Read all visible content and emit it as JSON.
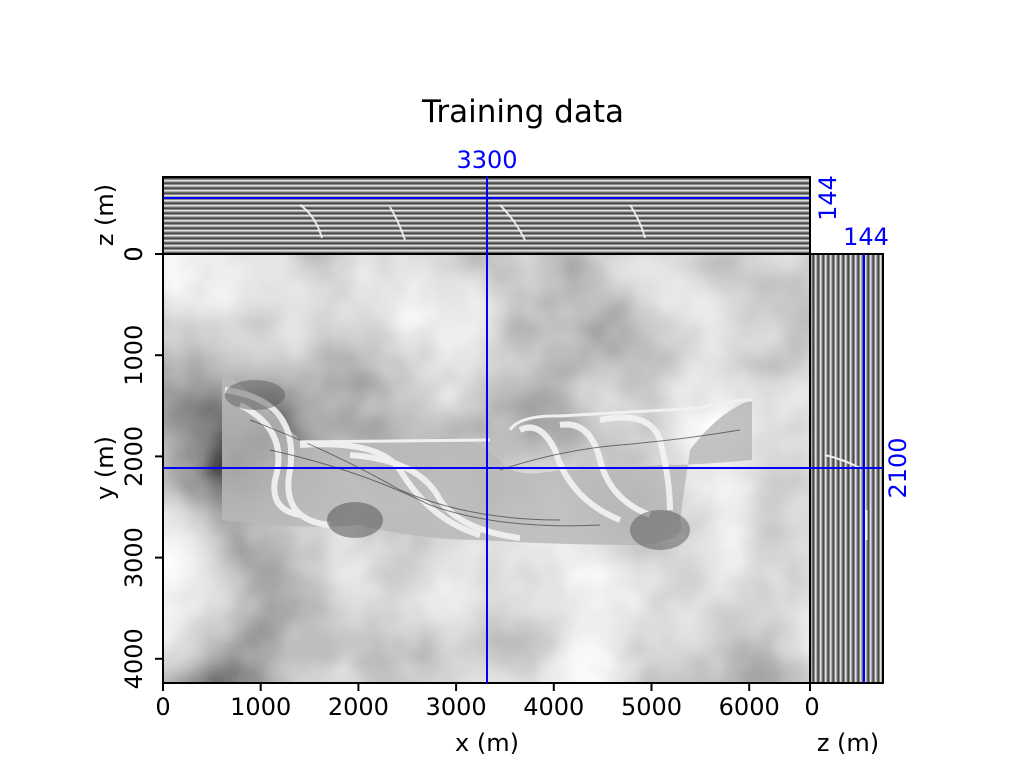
{
  "title": "Training data",
  "cross_section_labels": {
    "x_line": "3300",
    "y_line": "2100",
    "z_top": "144",
    "z_right": "144"
  },
  "axes": {
    "main": {
      "xlabel": "x (m)",
      "ylabel": "y (m)",
      "xticks": [
        "0",
        "1000",
        "2000",
        "3000",
        "4000",
        "5000",
        "6000"
      ],
      "yticks": [
        "0",
        "1000",
        "2000",
        "3000",
        "4000"
      ]
    },
    "top": {
      "ylabel": "z (m)",
      "yticks": [
        "0"
      ]
    },
    "right": {
      "xlabel": "z (m)",
      "xticks": [
        "0"
      ]
    }
  },
  "colors": {
    "crosshair": "#0000ff",
    "text": "#000000"
  }
}
